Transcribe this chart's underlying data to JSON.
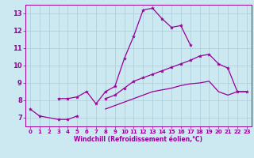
{
  "xlabel": "Windchill (Refroidissement éolien,°C)",
  "background_color": "#cce8f0",
  "grid_color": "#aaccdd",
  "line_color": "#990099",
  "xlim": [
    -0.5,
    23.5
  ],
  "ylim": [
    6.5,
    13.5
  ],
  "xticks": [
    0,
    1,
    2,
    3,
    4,
    5,
    6,
    7,
    8,
    9,
    10,
    11,
    12,
    13,
    14,
    15,
    16,
    17,
    18,
    19,
    20,
    21,
    22,
    23
  ],
  "yticks": [
    7,
    8,
    9,
    10,
    11,
    12,
    13
  ],
  "series": [
    {
      "x": [
        0,
        1,
        3,
        4,
        5
      ],
      "y": [
        7.5,
        7.1,
        6.9,
        6.9,
        7.1
      ],
      "marker": true
    },
    {
      "x": [
        3,
        4,
        5,
        6,
        7,
        8,
        9,
        10,
        11,
        12,
        13,
        14,
        15,
        16,
        17
      ],
      "y": [
        8.1,
        8.1,
        8.2,
        8.5,
        7.8,
        8.5,
        8.8,
        10.4,
        11.7,
        13.2,
        13.3,
        12.7,
        12.2,
        12.3,
        11.2
      ],
      "marker": true
    },
    {
      "x": [
        8,
        9,
        10,
        11,
        12,
        13,
        14,
        15,
        16,
        17,
        18,
        19,
        20,
        21,
        22,
        23
      ],
      "y": [
        8.1,
        8.3,
        8.7,
        9.1,
        9.3,
        9.5,
        9.7,
        9.9,
        10.1,
        10.3,
        10.55,
        10.65,
        10.1,
        9.85,
        8.5,
        8.5
      ],
      "marker": true
    },
    {
      "x": [
        8,
        9,
        10,
        11,
        12,
        13,
        14,
        15,
        16,
        17,
        18,
        19,
        20,
        21,
        22,
        23
      ],
      "y": [
        7.5,
        7.7,
        7.9,
        8.1,
        8.3,
        8.5,
        8.6,
        8.7,
        8.85,
        8.95,
        9.0,
        9.1,
        8.5,
        8.3,
        8.5,
        8.5
      ],
      "marker": false
    }
  ]
}
